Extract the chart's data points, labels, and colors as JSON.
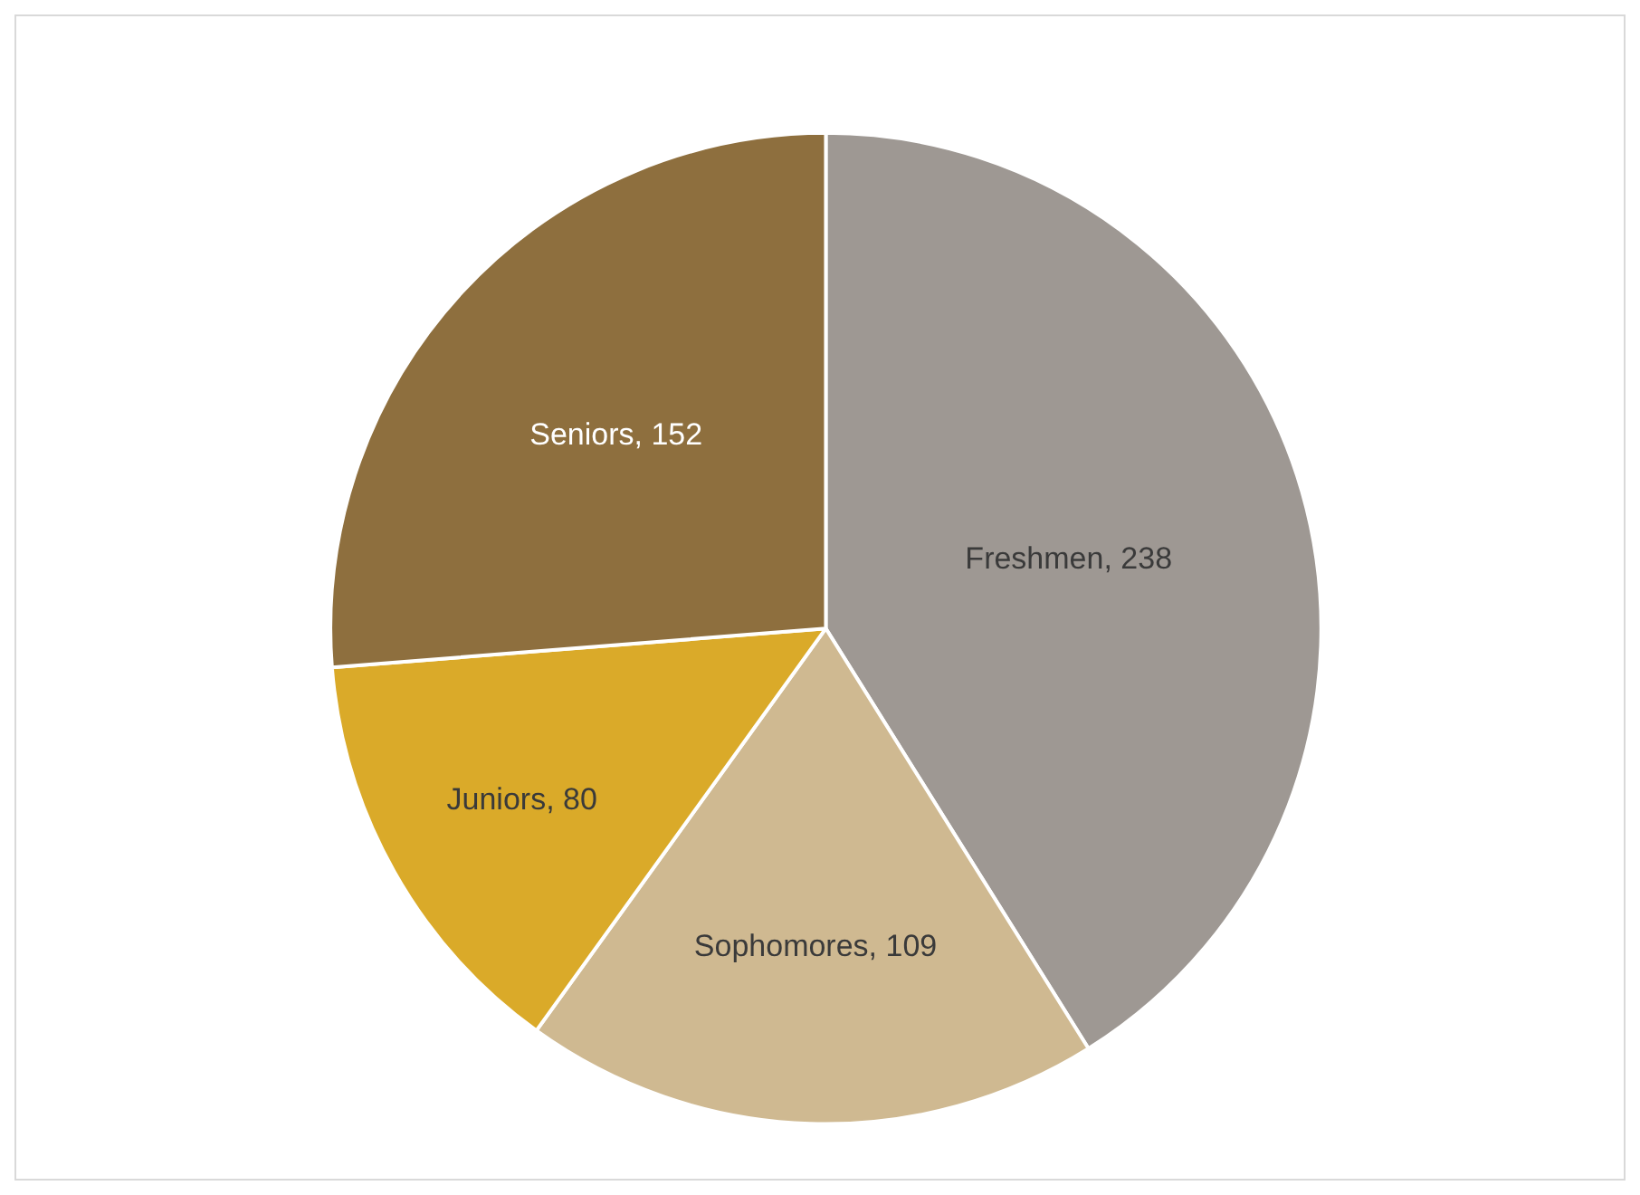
{
  "chart_data": {
    "type": "pie",
    "categories": [
      "Freshmen",
      "Sophomores",
      "Juniors",
      "Seniors"
    ],
    "values": [
      238,
      109,
      80,
      152
    ],
    "colors": [
      "#9e9893",
      "#cfb991",
      "#daaa29",
      "#8e6f3e"
    ],
    "value_labels": [
      ", 238",
      ", 109",
      ", 80",
      ", 152"
    ],
    "legend": false
  }
}
